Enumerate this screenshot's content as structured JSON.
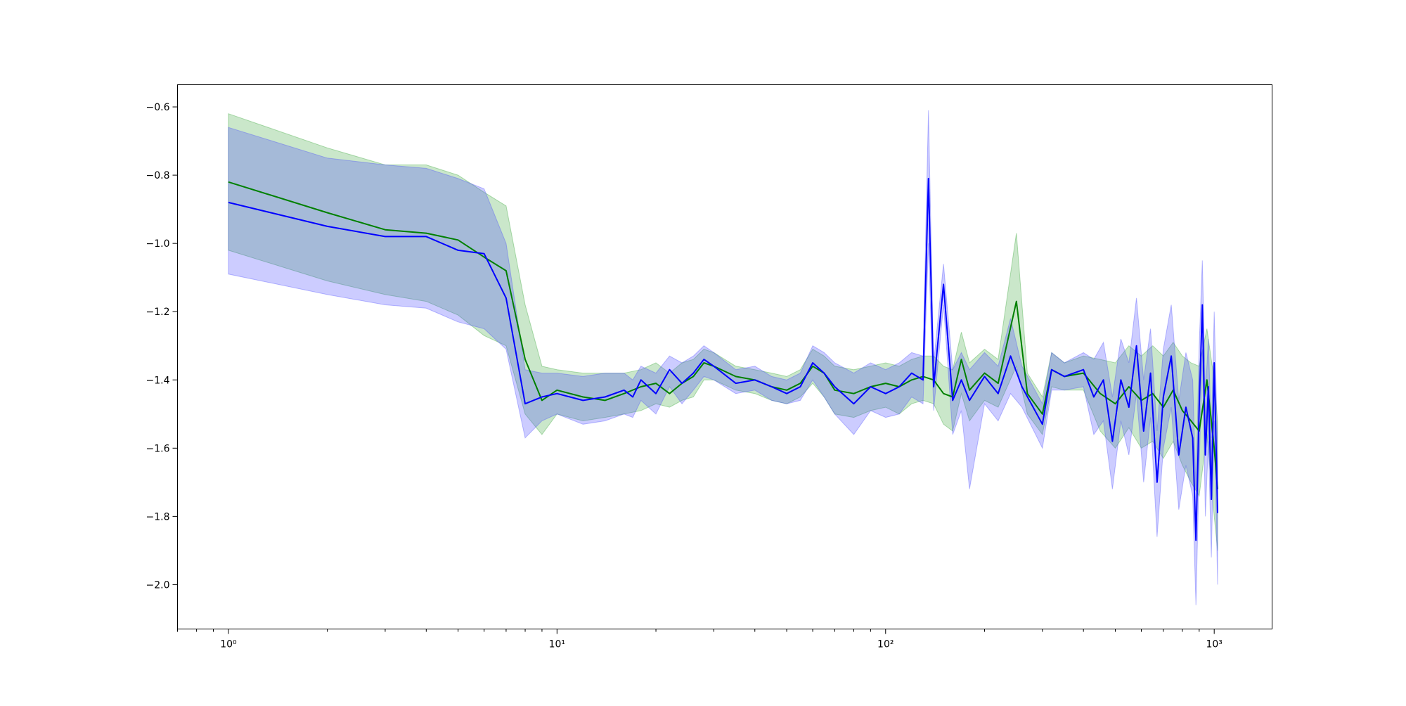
{
  "chart_data": {
    "type": "line",
    "title": "",
    "xlabel": "",
    "ylabel": "",
    "xscale": "log",
    "xlim": [
      0.7,
      1500
    ],
    "ylim": [
      -2.13,
      -0.535
    ],
    "grid": false,
    "legend": "none",
    "x_ticks": [
      {
        "value": 1,
        "label": "10⁰"
      },
      {
        "value": 10,
        "label": "10¹"
      },
      {
        "value": 100,
        "label": "10²"
      },
      {
        "value": 1000,
        "label": "10³"
      }
    ],
    "y_ticks": [
      {
        "value": -0.6,
        "label": "−0.6"
      },
      {
        "value": -0.8,
        "label": "−0.8"
      },
      {
        "value": -1.0,
        "label": "−1.0"
      },
      {
        "value": -1.2,
        "label": "−1.2"
      },
      {
        "value": -1.4,
        "label": "−1.4"
      },
      {
        "value": -1.6,
        "label": "−1.6"
      },
      {
        "value": -1.8,
        "label": "−1.8"
      },
      {
        "value": -2.0,
        "label": "−2.0"
      }
    ],
    "series": [
      {
        "color": "#008000",
        "band_color": "#2ca02c",
        "band_opacity": 0.25,
        "points": [
          [
            1,
            -0.82,
            -0.62,
            -1.02
          ],
          [
            2,
            -0.91,
            -0.72,
            -1.11
          ],
          [
            3,
            -0.96,
            -0.77,
            -1.15
          ],
          [
            4,
            -0.97,
            -0.77,
            -1.17
          ],
          [
            5,
            -0.99,
            -0.8,
            -1.21
          ],
          [
            6,
            -1.04,
            -0.85,
            -1.27
          ],
          [
            7,
            -1.08,
            -0.89,
            -1.3
          ],
          [
            8,
            -1.34,
            -1.18,
            -1.5
          ],
          [
            9,
            -1.46,
            -1.36,
            -1.56
          ],
          [
            10,
            -1.43,
            -1.37,
            -1.5
          ],
          [
            12,
            -1.45,
            -1.38,
            -1.52
          ],
          [
            14,
            -1.46,
            -1.38,
            -1.51
          ],
          [
            16,
            -1.44,
            -1.38,
            -1.5
          ],
          [
            18,
            -1.42,
            -1.37,
            -1.49
          ],
          [
            20,
            -1.41,
            -1.35,
            -1.47
          ],
          [
            22,
            -1.44,
            -1.38,
            -1.48
          ],
          [
            24,
            -1.41,
            -1.35,
            -1.46
          ],
          [
            26,
            -1.39,
            -1.34,
            -1.45
          ],
          [
            28,
            -1.35,
            -1.31,
            -1.4
          ],
          [
            30,
            -1.36,
            -1.32,
            -1.4
          ],
          [
            35,
            -1.39,
            -1.36,
            -1.43
          ],
          [
            40,
            -1.4,
            -1.37,
            -1.44
          ],
          [
            45,
            -1.42,
            -1.38,
            -1.46
          ],
          [
            50,
            -1.43,
            -1.39,
            -1.47
          ],
          [
            55,
            -1.41,
            -1.37,
            -1.45
          ],
          [
            60,
            -1.36,
            -1.31,
            -1.41
          ],
          [
            65,
            -1.38,
            -1.33,
            -1.45
          ],
          [
            70,
            -1.43,
            -1.36,
            -1.5
          ],
          [
            80,
            -1.44,
            -1.37,
            -1.51
          ],
          [
            90,
            -1.42,
            -1.36,
            -1.49
          ],
          [
            100,
            -1.41,
            -1.35,
            -1.48
          ],
          [
            110,
            -1.42,
            -1.36,
            -1.5
          ],
          [
            120,
            -1.4,
            -1.34,
            -1.47
          ],
          [
            130,
            -1.39,
            -1.33,
            -1.46
          ],
          [
            140,
            -1.4,
            -1.33,
            -1.47
          ],
          [
            150,
            -1.44,
            -1.36,
            -1.53
          ],
          [
            160,
            -1.45,
            -1.37,
            -1.55
          ],
          [
            170,
            -1.34,
            -1.26,
            -1.44
          ],
          [
            180,
            -1.43,
            -1.35,
            -1.52
          ],
          [
            200,
            -1.38,
            -1.31,
            -1.46
          ],
          [
            220,
            -1.41,
            -1.34,
            -1.48
          ],
          [
            250,
            -1.17,
            -0.97,
            -1.36
          ],
          [
            270,
            -1.44,
            -1.38,
            -1.5
          ],
          [
            300,
            -1.5,
            -1.45,
            -1.56
          ],
          [
            320,
            -1.37,
            -1.32,
            -1.42
          ],
          [
            350,
            -1.39,
            -1.35,
            -1.43
          ],
          [
            400,
            -1.38,
            -1.33,
            -1.43
          ],
          [
            450,
            -1.44,
            -1.34,
            -1.55
          ],
          [
            500,
            -1.47,
            -1.35,
            -1.6
          ],
          [
            550,
            -1.42,
            -1.3,
            -1.54
          ],
          [
            600,
            -1.46,
            -1.33,
            -1.6
          ],
          [
            650,
            -1.44,
            -1.3,
            -1.58
          ],
          [
            700,
            -1.48,
            -1.33,
            -1.63
          ],
          [
            750,
            -1.43,
            -1.29,
            -1.58
          ],
          [
            800,
            -1.49,
            -1.33,
            -1.65
          ],
          [
            850,
            -1.52,
            -1.35,
            -1.7
          ],
          [
            900,
            -1.55,
            -1.36,
            -1.74
          ],
          [
            950,
            -1.4,
            -1.25,
            -1.56
          ],
          [
            1000,
            -1.6,
            -1.4,
            -1.8
          ],
          [
            1024,
            -1.72,
            -1.52,
            -1.9
          ]
        ]
      },
      {
        "color": "#0000ff",
        "band_color": "#4444ff",
        "band_opacity": 0.27,
        "points": [
          [
            1,
            -0.88,
            -0.66,
            -1.09
          ],
          [
            2,
            -0.95,
            -0.75,
            -1.15
          ],
          [
            3,
            -0.98,
            -0.77,
            -1.18
          ],
          [
            4,
            -0.98,
            -0.78,
            -1.19
          ],
          [
            5,
            -1.02,
            -0.81,
            -1.23
          ],
          [
            6,
            -1.03,
            -0.84,
            -1.25
          ],
          [
            7,
            -1.16,
            -1.0,
            -1.31
          ],
          [
            8,
            -1.47,
            -1.37,
            -1.57
          ],
          [
            9,
            -1.45,
            -1.38,
            -1.52
          ],
          [
            10,
            -1.44,
            -1.38,
            -1.5
          ],
          [
            12,
            -1.46,
            -1.39,
            -1.53
          ],
          [
            14,
            -1.45,
            -1.38,
            -1.52
          ],
          [
            16,
            -1.43,
            -1.38,
            -1.5
          ],
          [
            17,
            -1.45,
            -1.4,
            -1.51
          ],
          [
            18,
            -1.4,
            -1.36,
            -1.46
          ],
          [
            20,
            -1.44,
            -1.38,
            -1.5
          ],
          [
            22,
            -1.37,
            -1.33,
            -1.42
          ],
          [
            24,
            -1.41,
            -1.35,
            -1.47
          ],
          [
            26,
            -1.38,
            -1.33,
            -1.43
          ],
          [
            28,
            -1.34,
            -1.3,
            -1.39
          ],
          [
            30,
            -1.36,
            -1.32,
            -1.4
          ],
          [
            35,
            -1.41,
            -1.37,
            -1.44
          ],
          [
            40,
            -1.4,
            -1.36,
            -1.43
          ],
          [
            45,
            -1.42,
            -1.39,
            -1.46
          ],
          [
            50,
            -1.44,
            -1.4,
            -1.47
          ],
          [
            55,
            -1.42,
            -1.38,
            -1.46
          ],
          [
            60,
            -1.35,
            -1.3,
            -1.4
          ],
          [
            65,
            -1.38,
            -1.32,
            -1.45
          ],
          [
            70,
            -1.42,
            -1.35,
            -1.5
          ],
          [
            80,
            -1.47,
            -1.38,
            -1.56
          ],
          [
            90,
            -1.42,
            -1.35,
            -1.49
          ],
          [
            100,
            -1.44,
            -1.37,
            -1.51
          ],
          [
            110,
            -1.42,
            -1.35,
            -1.5
          ],
          [
            120,
            -1.38,
            -1.32,
            -1.45
          ],
          [
            130,
            -1.4,
            -1.33,
            -1.47
          ],
          [
            135,
            -0.81,
            -0.61,
            -1.0
          ],
          [
            140,
            -1.42,
            -1.35,
            -1.49
          ],
          [
            150,
            -1.12,
            -1.06,
            -1.18
          ],
          [
            160,
            -1.46,
            -1.37,
            -1.56
          ],
          [
            170,
            -1.4,
            -1.32,
            -1.49
          ],
          [
            180,
            -1.46,
            -1.37,
            -1.72
          ],
          [
            200,
            -1.39,
            -1.32,
            -1.47
          ],
          [
            220,
            -1.44,
            -1.36,
            -1.52
          ],
          [
            240,
            -1.33,
            -1.22,
            -1.44
          ],
          [
            260,
            -1.42,
            -1.36,
            -1.48
          ],
          [
            300,
            -1.53,
            -1.47,
            -1.6
          ],
          [
            320,
            -1.37,
            -1.32,
            -1.43
          ],
          [
            350,
            -1.39,
            -1.35,
            -1.43
          ],
          [
            400,
            -1.37,
            -1.32,
            -1.42
          ],
          [
            430,
            -1.45,
            -1.34,
            -1.56
          ],
          [
            460,
            -1.4,
            -1.29,
            -1.52
          ],
          [
            490,
            -1.58,
            -1.45,
            -1.72
          ],
          [
            520,
            -1.4,
            -1.28,
            -1.52
          ],
          [
            550,
            -1.48,
            -1.35,
            -1.62
          ],
          [
            580,
            -1.3,
            -1.16,
            -1.44
          ],
          [
            610,
            -1.55,
            -1.4,
            -1.7
          ],
          [
            640,
            -1.38,
            -1.25,
            -1.51
          ],
          [
            670,
            -1.7,
            -1.55,
            -1.86
          ],
          [
            700,
            -1.45,
            -1.31,
            -1.6
          ],
          [
            740,
            -1.33,
            -1.18,
            -1.48
          ],
          [
            780,
            -1.62,
            -1.46,
            -1.78
          ],
          [
            820,
            -1.48,
            -1.32,
            -1.65
          ],
          [
            860,
            -1.57,
            -1.4,
            -1.74
          ],
          [
            880,
            -1.87,
            -1.72,
            -2.06
          ],
          [
            900,
            -1.48,
            -1.3,
            -1.66
          ],
          [
            920,
            -1.18,
            -1.05,
            -1.32
          ],
          [
            940,
            -1.62,
            -1.44,
            -1.8
          ],
          [
            960,
            -1.42,
            -1.28,
            -1.58
          ],
          [
            980,
            -1.75,
            -1.57,
            -1.92
          ],
          [
            1000,
            -1.35,
            -1.2,
            -1.52
          ],
          [
            1024,
            -1.79,
            -1.6,
            -2.0
          ]
        ]
      }
    ]
  }
}
